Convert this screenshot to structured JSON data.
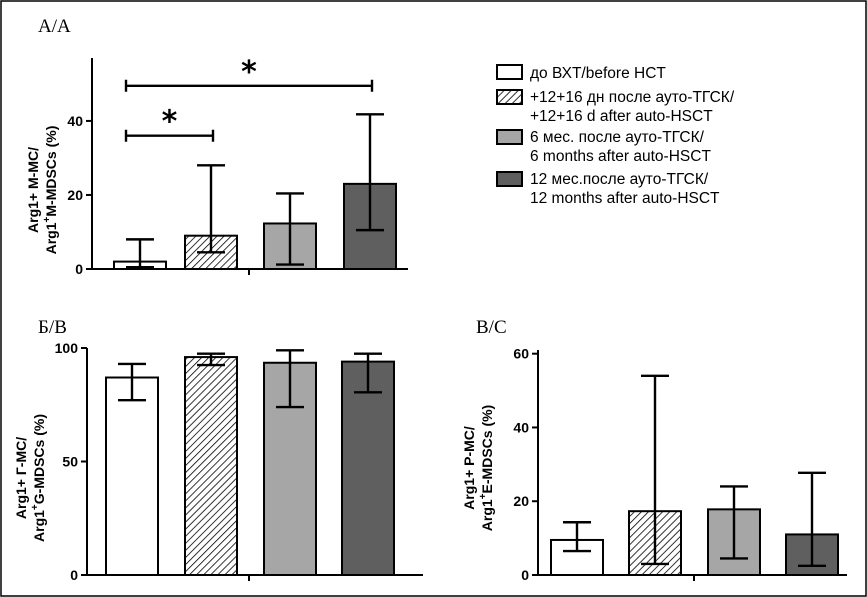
{
  "legend": [
    {
      "line1": "до ВХТ/before HCT",
      "line2": "",
      "fill": "#ffffff"
    },
    {
      "line1": "+12+16 дн после ауто-ТГСК/",
      "line2": "+12+16 d after auto-HSCT",
      "fill": "hatch"
    },
    {
      "line1": "6 мес. после ауто-ТГСК/",
      "line2": "6 months after auto-HSCT",
      "fill": "#a6a6a6"
    },
    {
      "line1": "12 мес.после ауто-ТГСК/",
      "line2": "12 months after auto-HSCT",
      "fill": "#5f5f5f"
    }
  ],
  "chart_data": [
    {
      "type": "bar",
      "panel_label": "A/A",
      "ylabel_line1": "Arg1+ M-MC/",
      "ylabel_line2_pre": "Arg1",
      "ylabel_line2_sup": "+",
      "ylabel_line2_post": "M-MDSCs (%)",
      "ylim": [
        0,
        57
      ],
      "yticks": [
        0,
        20,
        40
      ],
      "tick_labels": [
        "0",
        "20",
        "40"
      ],
      "categories": [
        "до ВХТ/before HCT",
        "+12+16 дн после ауто-ТГСК/+12+16 d after auto-HSCT",
        "6 мес. после ауто-ТГСК/6 months after auto-HSCT",
        "12 мес.после ауто-ТГСК/12 months after auto-HSCT"
      ],
      "values": [
        2,
        9,
        12.3,
        23
      ],
      "err_low": [
        0.5,
        4.5,
        1.2,
        10.5
      ],
      "err_high": [
        8,
        28,
        20.4,
        41.8
      ],
      "significance": [
        {
          "from": 0,
          "to": 1,
          "y": 36,
          "label": "*"
        },
        {
          "from": 0,
          "to": 3,
          "y": 49.5,
          "label": "*"
        }
      ]
    },
    {
      "type": "bar",
      "panel_label": "Б/B",
      "ylabel_line1": "Arg1+ Г-MC/",
      "ylabel_line2_pre": "Arg1",
      "ylabel_line2_sup": "+",
      "ylabel_line2_post": "G-MDSCs (%)",
      "ylim": [
        0,
        100
      ],
      "yticks": [
        0,
        50,
        100
      ],
      "tick_labels": [
        "0",
        "50",
        "100"
      ],
      "categories": [
        "до ВХТ/before HCT",
        "+12+16 дн после ауто-ТГСК/+12+16 d after auto-HSCT",
        "6 мес. после ауто-ТГСК/6 months after auto-HSCT",
        "12 мес.после ауто-ТГСК/12 months after auto-HSCT"
      ],
      "values": [
        87,
        96,
        93.5,
        94
      ],
      "err_low": [
        77,
        92.5,
        74,
        80.5
      ],
      "err_high": [
        93,
        97.5,
        99,
        97.5
      ],
      "significance": []
    },
    {
      "type": "bar",
      "panel_label": "В/C",
      "ylabel_line1": "Arg1+ P-MC/",
      "ylabel_line2_pre": "Arg1",
      "ylabel_line2_sup": "+",
      "ylabel_line2_post": "E-MDSCs (%)",
      "ylim": [
        0,
        61
      ],
      "yticks": [
        0,
        20,
        40,
        60
      ],
      "tick_labels": [
        "0",
        "20",
        "40",
        "60"
      ],
      "categories": [
        "до ВХТ/before HCT",
        "+12+16 дн после ауто-ТГСК/+12+16 d after auto-HSCT",
        "6 мес. после ауто-ТГСК/6 months after auto-HSCT",
        "12 мес.после ауто-ТГСК/12 months after auto-HSCT"
      ],
      "values": [
        9.5,
        17.3,
        17.8,
        11
      ],
      "err_low": [
        6.5,
        3,
        4.5,
        2.5
      ],
      "err_high": [
        14.3,
        54,
        24,
        27.7
      ],
      "significance": []
    }
  ]
}
